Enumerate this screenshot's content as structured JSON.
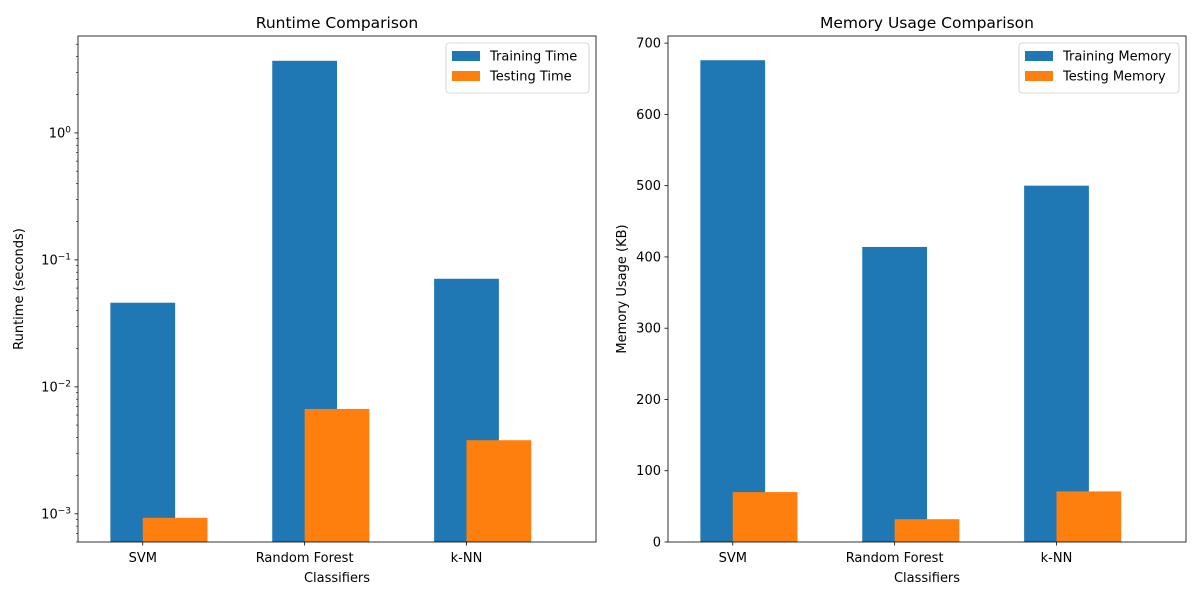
{
  "colors": {
    "training": "#1f77b4",
    "testing": "#ff7f0e"
  },
  "chart_data": [
    {
      "type": "bar",
      "title": "Runtime Comparison",
      "xlabel": "Classifiers",
      "ylabel": "Runtime (seconds)",
      "yscale": "log",
      "ylim": [
        0.0006,
        5.8
      ],
      "yticks": [
        {
          "value": 0.001,
          "mant": "10",
          "exp": "−3"
        },
        {
          "value": 0.01,
          "mant": "10",
          "exp": "−2"
        },
        {
          "value": 0.1,
          "mant": "10",
          "exp": "−1"
        },
        {
          "value": 1,
          "mant": "10",
          "exp": "0"
        }
      ],
      "categories": [
        "SVM",
        "Random Forest",
        "k-NN"
      ],
      "series": [
        {
          "name": "Training Time",
          "color": "#1f77b4",
          "values": [
            0.046,
            3.7,
            0.071
          ]
        },
        {
          "name": "Testing Time",
          "color": "#ff7f0e",
          "values": [
            0.00093,
            0.0067,
            0.0038
          ]
        }
      ],
      "legend": "top-right",
      "grid": false
    },
    {
      "type": "bar",
      "title": "Memory Usage Comparison",
      "xlabel": "Classifiers",
      "ylabel": "Memory Usage (KB)",
      "yscale": "linear",
      "ylim": [
        0,
        710
      ],
      "yticks": [
        {
          "value": 0,
          "label": "0"
        },
        {
          "value": 100,
          "label": "100"
        },
        {
          "value": 200,
          "label": "200"
        },
        {
          "value": 300,
          "label": "300"
        },
        {
          "value": 400,
          "label": "400"
        },
        {
          "value": 500,
          "label": "500"
        },
        {
          "value": 600,
          "label": "600"
        },
        {
          "value": 700,
          "label": "700"
        }
      ],
      "categories": [
        "SVM",
        "Random Forest",
        "k-NN"
      ],
      "series": [
        {
          "name": "Training Memory",
          "color": "#1f77b4",
          "values": [
            676,
            414,
            500
          ]
        },
        {
          "name": "Testing Memory",
          "color": "#ff7f0e",
          "values": [
            70,
            32,
            71
          ]
        }
      ],
      "legend": "top-right",
      "grid": false
    }
  ]
}
